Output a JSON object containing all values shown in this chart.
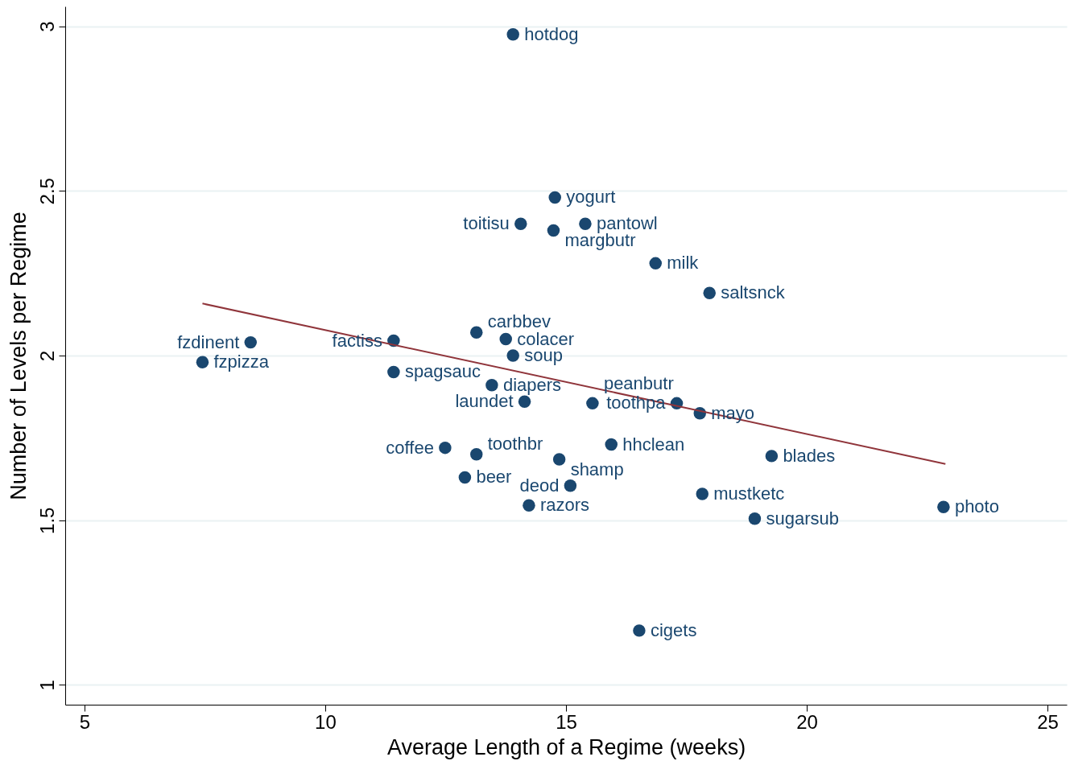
{
  "chart_data": {
    "type": "scatter",
    "xlabel": "Average Length of a  Regime (weeks)",
    "ylabel": "Number of Levels per Regime",
    "xlim": [
      4.6,
      25.4
    ],
    "ylim": [
      0.94,
      3.06
    ],
    "xticks": [
      5,
      10,
      15,
      20,
      25
    ],
    "yticks": [
      1,
      1.5,
      2,
      2.5,
      3
    ],
    "grid": "y",
    "series": [
      {
        "type": "scatter",
        "marker": "circle",
        "color": "#1a476f",
        "x": [
          13.9,
          14.77,
          14.06,
          15.4,
          14.74,
          16.86,
          17.98,
          13.14,
          13.75,
          11.42,
          8.45,
          13.9,
          7.45,
          11.42,
          13.46,
          14.14,
          15.55,
          17.3,
          17.78,
          15.94,
          19.27,
          12.49,
          13.14,
          14.86,
          12.9,
          15.09,
          17.83,
          14.23,
          18.92,
          22.84,
          16.52
        ],
        "values": [
          2.975,
          2.48,
          2.4,
          2.4,
          2.38,
          2.28,
          2.19,
          2.07,
          2.05,
          2.045,
          2.04,
          2.0,
          1.98,
          1.95,
          1.91,
          1.86,
          1.855,
          1.855,
          1.825,
          1.73,
          1.695,
          1.72,
          1.7,
          1.685,
          1.63,
          1.605,
          1.58,
          1.545,
          1.505,
          1.54,
          1.165
        ]
      },
      {
        "type": "line",
        "color": "#90353b",
        "x": [
          7.45,
          22.88
        ],
        "values": [
          2.158,
          1.671
        ]
      }
    ],
    "annotations": [
      {
        "text": "hotdog",
        "x": 13.9,
        "y": 2.975
      },
      {
        "text": "yogurt",
        "x": 14.77,
        "y": 2.48
      },
      {
        "text": "toitisu",
        "x": 14.06,
        "y": 2.4
      },
      {
        "text": "pantowl",
        "x": 15.4,
        "y": 2.4
      },
      {
        "text": "margbutr",
        "x": 14.74,
        "y": 2.38
      },
      {
        "text": "milk",
        "x": 16.86,
        "y": 2.28
      },
      {
        "text": "saltsnck",
        "x": 17.98,
        "y": 2.19
      },
      {
        "text": "carbbev",
        "x": 13.14,
        "y": 2.07
      },
      {
        "text": "colacer",
        "x": 13.75,
        "y": 2.05
      },
      {
        "text": "factiss",
        "x": 11.42,
        "y": 2.045
      },
      {
        "text": "fzdinent",
        "x": 8.45,
        "y": 2.04
      },
      {
        "text": "soup",
        "x": 13.9,
        "y": 2.0
      },
      {
        "text": "fzpizza",
        "x": 7.45,
        "y": 1.98
      },
      {
        "text": "spagsauc",
        "x": 11.42,
        "y": 1.95
      },
      {
        "text": "diapers",
        "x": 13.46,
        "y": 1.91
      },
      {
        "text": "laundet",
        "x": 14.14,
        "y": 1.86
      },
      {
        "text": "peanbutr",
        "x": 15.55,
        "y": 1.855
      },
      {
        "text": "toothpa",
        "x": 17.3,
        "y": 1.855
      },
      {
        "text": "mayo",
        "x": 17.78,
        "y": 1.825
      },
      {
        "text": "hhclean",
        "x": 15.94,
        "y": 1.73
      },
      {
        "text": "blades",
        "x": 19.27,
        "y": 1.695
      },
      {
        "text": "coffee",
        "x": 12.49,
        "y": 1.72
      },
      {
        "text": "toothbr",
        "x": 13.14,
        "y": 1.7
      },
      {
        "text": "shamp",
        "x": 14.86,
        "y": 1.685
      },
      {
        "text": "beer",
        "x": 12.9,
        "y": 1.63
      },
      {
        "text": "deod",
        "x": 15.09,
        "y": 1.605
      },
      {
        "text": "mustketc",
        "x": 17.83,
        "y": 1.58
      },
      {
        "text": "razors",
        "x": 14.23,
        "y": 1.545
      },
      {
        "text": "sugarsub",
        "x": 18.92,
        "y": 1.505
      },
      {
        "text": "photo",
        "x": 22.84,
        "y": 1.54
      },
      {
        "text": "cigets",
        "x": 16.52,
        "y": 1.165
      }
    ]
  }
}
